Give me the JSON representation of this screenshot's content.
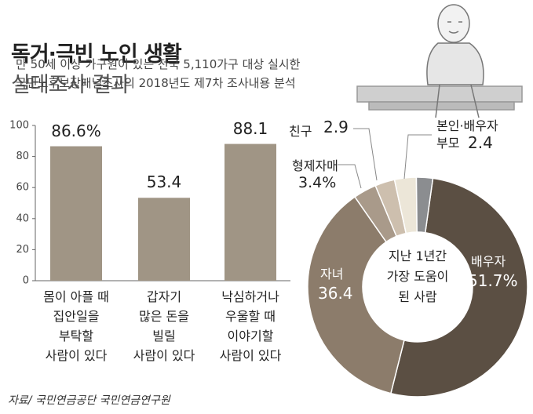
{
  "title": [
    "독거·극빈 노인 생활",
    "실태조사 결과"
  ],
  "subtitle": "만 50세 이상 가구원이 있는 전국 5,110가구 대상 실시한\n국민노후보장패널조사의 2018년도 제7차 조사내용 분석",
  "source": "자료/ 국민연금공단 국민연금연구원",
  "chart_data": [
    {
      "type": "bar",
      "categories": [
        "몸이 아플 때\n집안일을\n부탁할\n사람이 있다",
        "갑자기\n많은 돈을\n빌릴\n사람이 있다",
        "낙심하거나\n우울할 때\n이야기할\n사람이 있다"
      ],
      "values": [
        86.6,
        53.4,
        88.1
      ],
      "value_labels": [
        "86.6%",
        "53.4",
        "88.1"
      ],
      "color": "#a09585",
      "ylim": [
        0,
        100
      ],
      "yticks": [
        0,
        20,
        40,
        60,
        80,
        100
      ]
    },
    {
      "type": "pie",
      "title": "지난 1년간\n가장 도움이\n된 사람",
      "categories": [
        "배우자",
        "자녀",
        "형제자매",
        "친구",
        null,
        "본인·배우자\n부모"
      ],
      "values": [
        51.7,
        36.4,
        3.4,
        2.9,
        3.2,
        2.4
      ],
      "value_labels": [
        "51.7%",
        "36.4",
        "3.4%",
        "2.9",
        null,
        "2.4"
      ],
      "colors": [
        "#5b4f43",
        "#8c7c6b",
        "#a99a8a",
        "#cdbfae",
        "#ece6d8",
        "#8b8d90"
      ]
    }
  ]
}
